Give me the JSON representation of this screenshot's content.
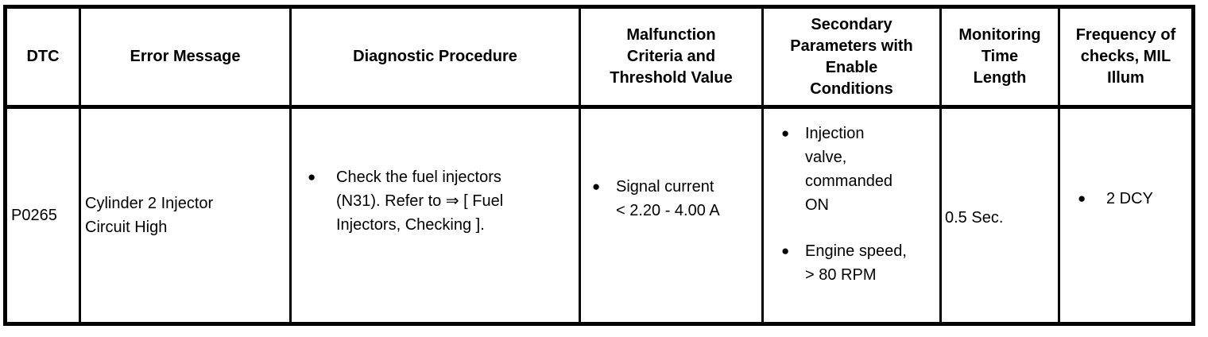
{
  "colors": {
    "background": "#ffffff",
    "text": "#000000",
    "border": "#000000"
  },
  "icons": {
    "bullet": "●"
  },
  "table": {
    "headers": [
      {
        "label": "DTC",
        "lines": [
          "DTC"
        ]
      },
      {
        "label": "Error Message",
        "lines": [
          "Error Message"
        ]
      },
      {
        "label": "Diagnostic Procedure",
        "lines": [
          "Diagnostic Procedure"
        ]
      },
      {
        "label": "Malfunction Criteria and Threshold Value",
        "lines": [
          "Malfunction",
          "Criteria and",
          "Threshold Value"
        ]
      },
      {
        "label": "Secondary Parameters with Enable Conditions",
        "lines": [
          "Secondary",
          "Parameters with",
          "Enable",
          "Conditions"
        ]
      },
      {
        "label": "Monitoring Time Length",
        "lines": [
          "Monitoring",
          "Time",
          "Length"
        ]
      },
      {
        "label": "Frequency of checks, MIL Illum",
        "lines": [
          "Frequency of",
          "checks, MIL",
          "Illum"
        ]
      }
    ],
    "row": {
      "dtc": "P0265",
      "error_message": "Cylinder 2 Injector Circuit High",
      "error_message_lines": [
        "Cylinder 2 Injector",
        "Circuit High"
      ],
      "diagnostic_procedure": [
        {
          "text": "Check the fuel injectors (N31). Refer to ⇒ [ Fuel Injectors, Checking ].",
          "lines": [
            "Check the fuel injectors",
            "(N31). Refer to ⇒ [ Fuel",
            "Injectors, Checking ]."
          ]
        }
      ],
      "malfunction_criteria": [
        {
          "text": "Signal current < 2.20 - 4.00 A",
          "lines": [
            "Signal current",
            "< 2.20 - 4.00 A"
          ]
        }
      ],
      "secondary_parameters": [
        {
          "text": "Injection valve, commanded ON",
          "lines": [
            "Injection",
            "valve,",
            "commanded",
            "ON"
          ]
        },
        {
          "text": "Engine speed, > 80 RPM",
          "lines": [
            "Engine speed,",
            "> 80 RPM"
          ]
        }
      ],
      "monitoring_time": "0.5 Sec.",
      "frequency_of_checks": [
        {
          "text": "2 DCY",
          "lines": [
            "2 DCY"
          ]
        }
      ]
    }
  }
}
